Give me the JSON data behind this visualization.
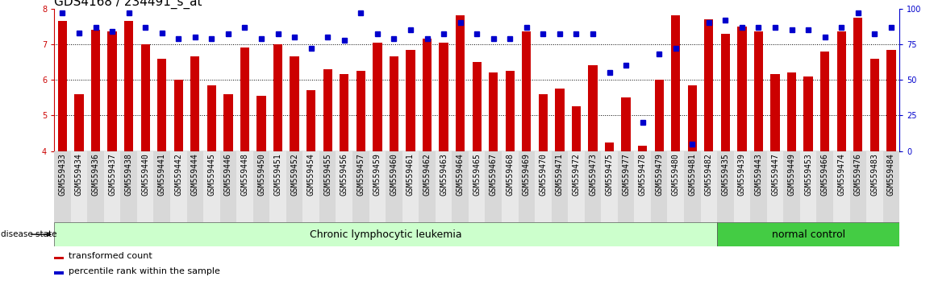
{
  "title": "GDS4168 / 234491_s_at",
  "samples": [
    "GSM559433",
    "GSM559434",
    "GSM559436",
    "GSM559437",
    "GSM559438",
    "GSM559440",
    "GSM559441",
    "GSM559442",
    "GSM559444",
    "GSM559445",
    "GSM559446",
    "GSM559448",
    "GSM559450",
    "GSM559451",
    "GSM559452",
    "GSM559454",
    "GSM559455",
    "GSM559456",
    "GSM559457",
    "GSM559459",
    "GSM559460",
    "GSM559461",
    "GSM559462",
    "GSM559463",
    "GSM559464",
    "GSM559465",
    "GSM559467",
    "GSM559468",
    "GSM559469",
    "GSM559470",
    "GSM559471",
    "GSM559472",
    "GSM559473",
    "GSM559475",
    "GSM559477",
    "GSM559478",
    "GSM559479",
    "GSM559480",
    "GSM559481",
    "GSM559482",
    "GSM559435",
    "GSM559439",
    "GSM559443",
    "GSM559447",
    "GSM559449",
    "GSM559453",
    "GSM559466",
    "GSM559474",
    "GSM559476",
    "GSM559483",
    "GSM559484"
  ],
  "bar_values": [
    7.65,
    5.6,
    7.4,
    7.35,
    7.65,
    7.0,
    6.6,
    6.0,
    6.65,
    5.85,
    5.6,
    6.9,
    5.55,
    7.0,
    6.65,
    5.7,
    6.3,
    6.15,
    6.25,
    7.05,
    6.65,
    6.85,
    7.15,
    7.05,
    7.8,
    6.5,
    6.2,
    6.25,
    7.35,
    5.6,
    5.75,
    5.25,
    6.4,
    4.25,
    5.5,
    4.15,
    6.0,
    7.8,
    5.85,
    7.7,
    7.3,
    7.5,
    7.35,
    6.15,
    6.2,
    6.1,
    6.8,
    7.35,
    7.75,
    6.6,
    6.85
  ],
  "percentile_values": [
    97,
    83,
    87,
    84,
    97,
    87,
    83,
    79,
    80,
    79,
    82,
    87,
    79,
    82,
    80,
    72,
    80,
    78,
    97,
    82,
    79,
    85,
    79,
    82,
    90,
    82,
    79,
    79,
    87,
    82,
    82,
    82,
    82,
    55,
    60,
    20,
    68,
    72,
    5,
    90,
    92,
    87,
    87,
    87,
    85,
    85,
    80,
    87,
    97,
    82,
    87
  ],
  "n_cll": 40,
  "n_nc": 11,
  "cll_color": "#ccffcc",
  "nc_color": "#44cc44",
  "bar_color": "#cc0000",
  "dot_color": "#0000cc",
  "ylim_left": [
    4.0,
    8.0
  ],
  "ylim_right": [
    0,
    100
  ],
  "yticks_left": [
    4,
    5,
    6,
    7,
    8
  ],
  "yticks_right": [
    0,
    25,
    50,
    75,
    100
  ],
  "cll_label": "Chronic lymphocytic leukemia",
  "nc_label": "normal control",
  "disease_state_label": "disease state",
  "legend_items": [
    "transformed count",
    "percentile rank within the sample"
  ],
  "title_fontsize": 11,
  "tick_fontsize": 7,
  "label_fontsize": 9,
  "legend_fontsize": 8,
  "stripe_colors": [
    "#d8d8d8",
    "#e8e8e8"
  ]
}
